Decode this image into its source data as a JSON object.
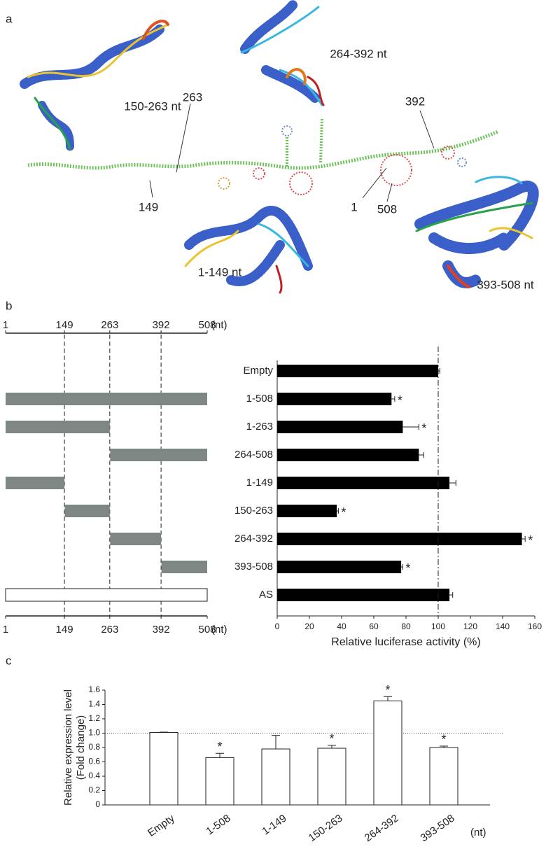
{
  "panel_labels": [
    "a",
    "b",
    "c"
  ],
  "panel_a": {
    "structure_labels": [
      "150-263 nt",
      "264-392 nt",
      "1-149 nt",
      "393-508 nt"
    ],
    "position_labels": [
      "263",
      "392",
      "149",
      "1",
      "508"
    ]
  },
  "panel_b_map": {
    "top_axis": {
      "ticks": [
        1,
        149,
        263,
        392,
        508
      ],
      "unit": "(nt)"
    },
    "bottom_axis": {
      "ticks": [
        1,
        149,
        263,
        392,
        508
      ],
      "unit": "(nt)"
    },
    "rows": [
      {
        "start": 1,
        "end": 508,
        "fill": "#7f8784"
      },
      {
        "start": 1,
        "end": 263,
        "fill": "#7f8784"
      },
      {
        "start": 264,
        "end": 508,
        "fill": "#7f8784"
      },
      {
        "start": 1,
        "end": 149,
        "fill": "#7f8784"
      },
      {
        "start": 150,
        "end": 263,
        "fill": "#7f8784"
      },
      {
        "start": 264,
        "end": 392,
        "fill": "#7f8784"
      },
      {
        "start": 393,
        "end": 508,
        "fill": "#7f8784"
      },
      {
        "start": 1,
        "end": 508,
        "fill": "#ffffff"
      }
    ]
  },
  "chart_data": [
    {
      "type": "barh",
      "xlabel": "Relative luciferase activity (%)",
      "categories": [
        "Empty",
        "1-508",
        "1-263",
        "264-508",
        "1-149",
        "150-263",
        "264-392",
        "393-508",
        "AS"
      ],
      "values": [
        100,
        71,
        78,
        88,
        107,
        37,
        152,
        77,
        107
      ],
      "errors": [
        1,
        2,
        10,
        3,
        4,
        1,
        2,
        1,
        2
      ],
      "markers": [
        null,
        "*",
        "*",
        null,
        null,
        "*",
        "*",
        "*",
        null
      ],
      "color": "#000000",
      "xlim": [
        0,
        160
      ],
      "xticks": [
        0,
        20,
        40,
        60,
        80,
        100,
        120,
        140,
        160
      ],
      "ref_line": 100
    },
    {
      "type": "bar",
      "ylabel": [
        "Relative expression level",
        "(Fold change)"
      ],
      "xunit": "(nt)",
      "categories": [
        "Empty",
        "1-508",
        "1-149",
        "150-263",
        "264-392",
        "393-508"
      ],
      "values": [
        1.01,
        0.66,
        0.78,
        0.79,
        1.45,
        0.8
      ],
      "errors": [
        0.005,
        0.06,
        0.19,
        0.04,
        0.06,
        0.02
      ],
      "markers": [
        null,
        "*",
        null,
        "*",
        "*",
        "*"
      ],
      "color": "#ffffff",
      "ylim": [
        0,
        1.6
      ],
      "yticks": [
        0,
        0.2,
        0.4,
        0.6,
        0.8,
        {
          "value": 1,
          "label": "1.0"
        },
        1.2,
        1.4,
        1.6
      ],
      "ref_line": 1
    }
  ]
}
